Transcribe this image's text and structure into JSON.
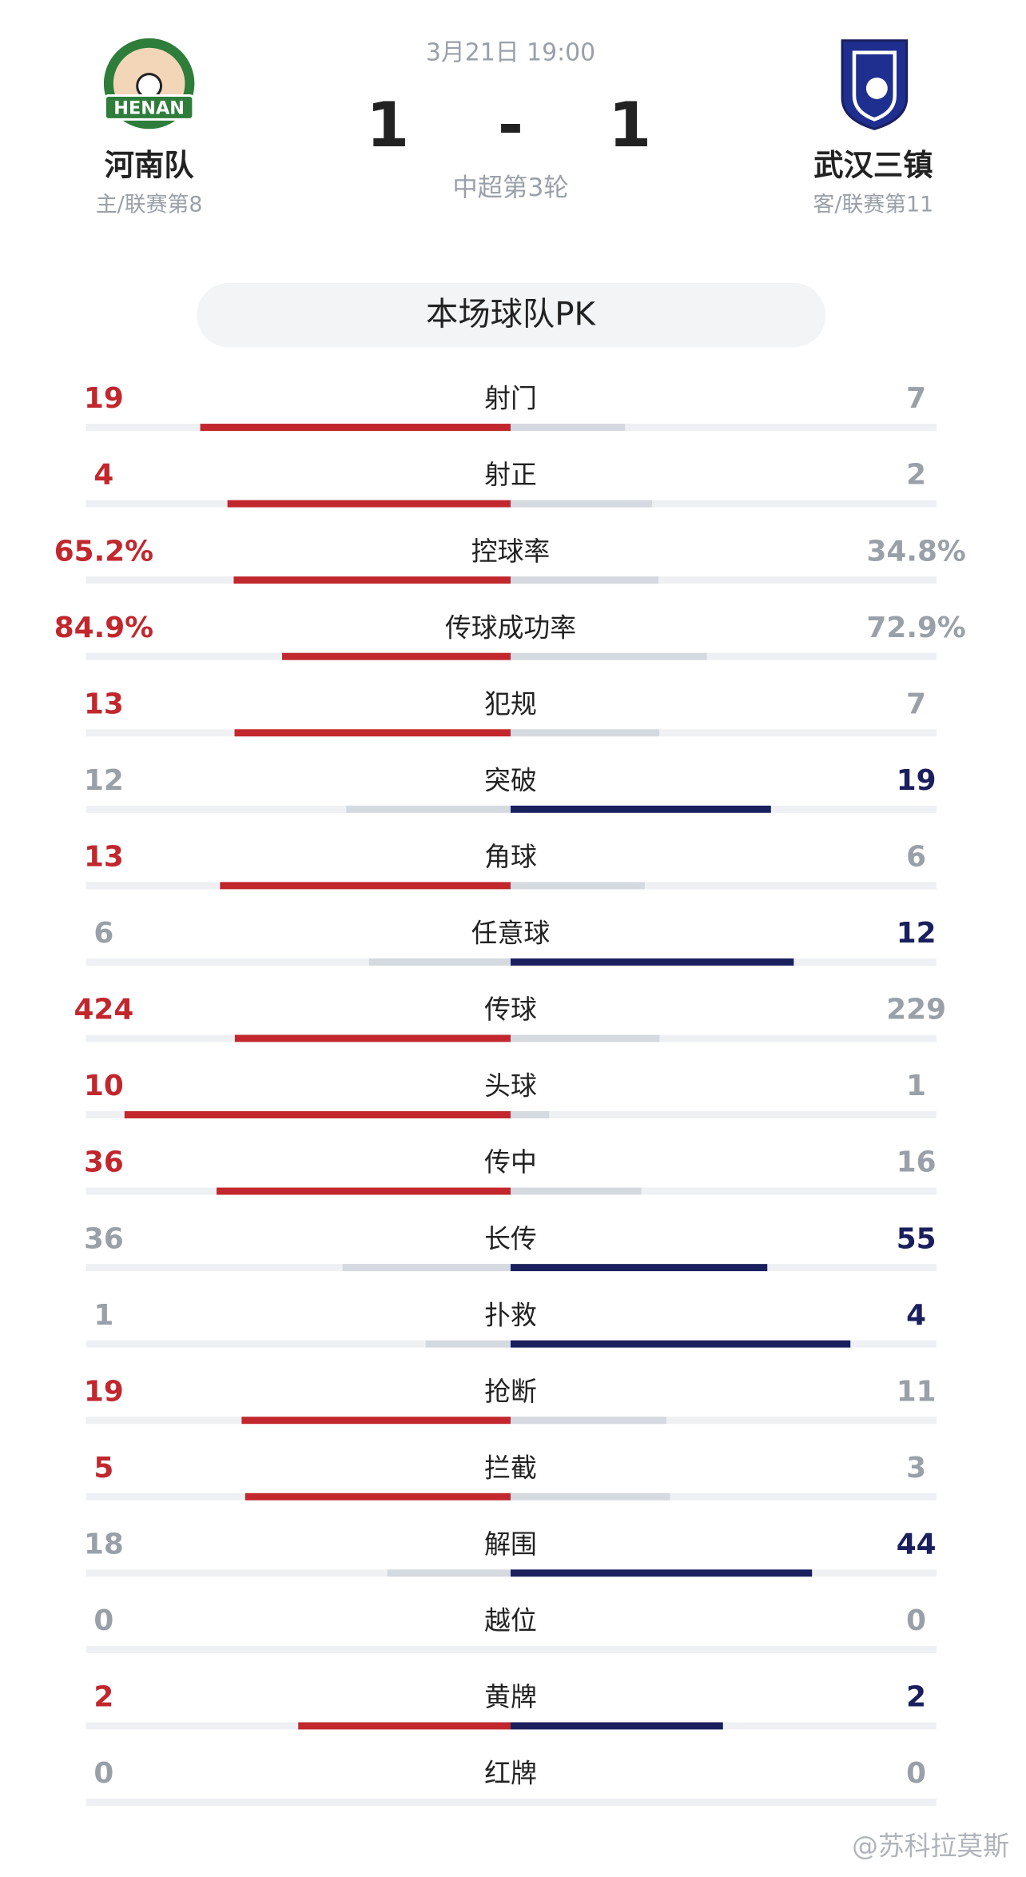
{
  "header": {
    "date": "3月21日 19:00",
    "score_home": 1,
    "score_separator": "-",
    "score_away": 1,
    "round": "中超第3轮",
    "home": {
      "name": "河南队",
      "info": "主/联赛第8",
      "logo_text": "HENAN"
    },
    "away": {
      "name": "武汉三镇",
      "info": "客/联赛第11"
    }
  },
  "section_title": "本场球队PK",
  "stats": {
    "rows": [
      {
        "label": "射门",
        "home": 19,
        "away": 7
      },
      {
        "label": "射正",
        "home": 4,
        "away": 2
      },
      {
        "label": "控球率",
        "home": {
          "value": 65.2,
          "label": "65.2%"
        },
        "away": {
          "value": 34.8,
          "label": "34.8%"
        }
      },
      {
        "label": "传球成功率",
        "home": {
          "value": 84.9,
          "label": "84.9%"
        },
        "away": {
          "value": 72.9,
          "label": "72.9%"
        }
      },
      {
        "label": "犯规",
        "home": 13,
        "away": 7
      },
      {
        "label": "突破",
        "home": 12,
        "away": 19
      },
      {
        "label": "角球",
        "home": 13,
        "away": 6
      },
      {
        "label": "任意球",
        "home": 6,
        "away": 12
      },
      {
        "label": "传球",
        "home": 424,
        "away": 229
      },
      {
        "label": "头球",
        "home": 10,
        "away": 1
      },
      {
        "label": "传中",
        "home": 36,
        "away": 16
      },
      {
        "label": "长传",
        "home": 36,
        "away": 55
      },
      {
        "label": "扑救",
        "home": 1,
        "away": 4
      },
      {
        "label": "抢断",
        "home": 19,
        "away": 11
      },
      {
        "label": "拦截",
        "home": 5,
        "away": 3
      },
      {
        "label": "解围",
        "home": 18,
        "away": 44
      },
      {
        "label": "越位",
        "home": 0,
        "away": 0
      },
      {
        "label": "黄牌",
        "home": 2,
        "away": 2
      },
      {
        "label": "红牌",
        "home": 0,
        "away": 0
      }
    ]
  },
  "watermark": "@苏科拉莫斯"
}
